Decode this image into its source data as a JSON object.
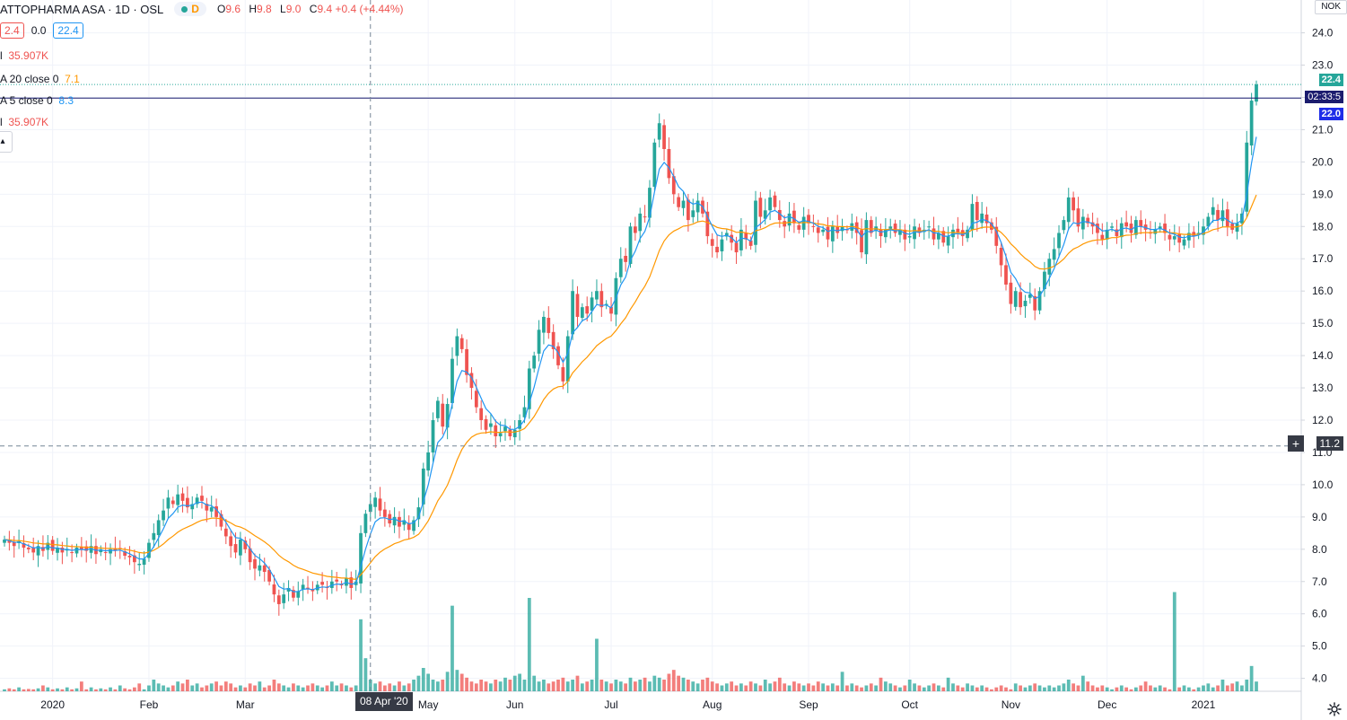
{
  "header": {
    "symbol": "ATTOPHARMA ASA · 1D · OSL",
    "badge": "D",
    "ohlc": [
      {
        "k": "O",
        "v": "9.6"
      },
      {
        "k": "H",
        "v": "9.8"
      },
      {
        "k": "L",
        "v": "9.0"
      },
      {
        "k": "C",
        "v": "9.4 +0.4 (+4.44%)"
      }
    ]
  },
  "legend": {
    "box1": "2.4",
    "mid": "0.0",
    "box2": "22.4",
    "vol_label": "l",
    "vol_value": "35.907K",
    "ema20_label": "A 20 close 0",
    "ema20_value": "7.1",
    "ema5_label": "A 5 close 0",
    "ema5_value": "8.3",
    "vol2_label": "l",
    "vol2_value": "35.907K"
  },
  "currency": "NOK",
  "price_labels": {
    "last": "22.4",
    "countdown": "02:33:5",
    "level": "22.0",
    "crosshair": "11.2",
    "crosshair_date": "08 Apr '20"
  },
  "colors": {
    "up": "#26a69a",
    "down": "#ef5350",
    "ema5": "#2196f3",
    "ema20": "#ff9800",
    "level_line": "#1b1c6e",
    "axis_text": "#131722"
  },
  "chart_data": {
    "type": "candlestick",
    "y_ticks": [
      "24.0",
      "23.0",
      "22.0",
      "21.0",
      "20.0",
      "19.0",
      "18.0",
      "17.0",
      "16.0",
      "15.0",
      "14.0",
      "13.0",
      "12.0",
      "11.0",
      "10.0",
      "9.0",
      "8.0",
      "7.0",
      "6.0",
      "5.0",
      "4.0"
    ],
    "ylim": [
      3.6,
      24.6
    ],
    "x_ticks": [
      {
        "label": "2020",
        "idx": 10
      },
      {
        "label": "Feb",
        "idx": 30
      },
      {
        "label": "Mar",
        "idx": 50
      },
      {
        "label": "May",
        "idx": 88
      },
      {
        "label": "Jun",
        "idx": 106
      },
      {
        "label": "Jul",
        "idx": 126
      },
      {
        "label": "Aug",
        "idx": 147
      },
      {
        "label": "Sep",
        "idx": 167
      },
      {
        "label": "Oct",
        "idx": 188
      },
      {
        "label": "Nov",
        "idx": 209
      },
      {
        "label": "Dec",
        "idx": 229
      },
      {
        "label": "2021",
        "idx": 249
      }
    ],
    "level_line": 21.98,
    "last_price": 22.4,
    "crosshair_price": 11.2,
    "crosshair_idx": 76,
    "volume_scale_max": 9.0,
    "closes": [
      8.3,
      8.2,
      8.1,
      8.25,
      8.05,
      8.0,
      7.9,
      8.1,
      7.95,
      8.2,
      7.95,
      8.05,
      7.9,
      8.0,
      7.9,
      8.05,
      8.0,
      7.95,
      8.1,
      7.85,
      8.0,
      7.9,
      8.0,
      7.95,
      8.0,
      7.8,
      7.75,
      7.6,
      7.55,
      7.7,
      8.2,
      8.5,
      8.9,
      9.2,
      9.6,
      9.4,
      9.7,
      9.5,
      9.3,
      9.4,
      9.6,
      9.5,
      9.2,
      9.3,
      9.0,
      8.7,
      8.4,
      8.1,
      7.9,
      8.3,
      8.0,
      7.6,
      7.4,
      7.5,
      7.3,
      7.0,
      6.6,
      6.3,
      6.6,
      6.8,
      6.5,
      6.7,
      6.9,
      6.8,
      6.7,
      6.9,
      6.9,
      6.8,
      7.0,
      7.0,
      6.9,
      7.1,
      6.8,
      7.0,
      8.5,
      9.1,
      9.4,
      9.6,
      9.2,
      9.0,
      8.8,
      9.0,
      8.7,
      8.9,
      8.6,
      8.9,
      9.3,
      10.5,
      11.0,
      12.0,
      12.6,
      11.8,
      12.5,
      13.9,
      14.6,
      14.2,
      13.4,
      13.0,
      12.4,
      12.0,
      11.7,
      11.9,
      11.5,
      11.6,
      11.8,
      11.5,
      11.7,
      12.0,
      12.4,
      13.6,
      14.0,
      14.8,
      15.2,
      14.7,
      14.2,
      13.7,
      13.2,
      14.6,
      16.0,
      15.2,
      15.5,
      15.3,
      15.8,
      16.0,
      15.5,
      15.6,
      15.3,
      16.4,
      17.0,
      16.9,
      18.0,
      17.8,
      18.4,
      18.3,
      19.2,
      20.6,
      21.2,
      20.4,
      19.5,
      19.0,
      18.6,
      18.8,
      18.2,
      18.5,
      18.8,
      18.4,
      17.7,
      17.4,
      17.2,
      17.6,
      17.8,
      17.5,
      17.2,
      17.9,
      17.6,
      17.4,
      18.8,
      18.3,
      18.5,
      18.9,
      18.6,
      18.2,
      18.0,
      18.4,
      18.1,
      17.9,
      18.3,
      18.1,
      18.0,
      17.8,
      17.9,
      17.6,
      18.0,
      17.8,
      18.0,
      17.9,
      18.1,
      17.8,
      17.2,
      18.2,
      17.8,
      18.0,
      17.7,
      17.9,
      18.0,
      17.8,
      17.9,
      17.6,
      17.7,
      18.0,
      17.8,
      17.9,
      18.0,
      17.6,
      17.8,
      17.5,
      17.7,
      17.9,
      17.8,
      17.7,
      17.9,
      18.7,
      18.2,
      18.4,
      18.1,
      17.9,
      17.4,
      16.8,
      16.2,
      15.6,
      16.0,
      15.5,
      15.7,
      15.9,
      15.4,
      16.0,
      16.6,
      17.0,
      17.3,
      17.8,
      18.2,
      18.9,
      18.5,
      18.0,
      18.3,
      18.1,
      18.0,
      17.8,
      17.6,
      17.9,
      18.0,
      17.7,
      18.1,
      18.0,
      17.8,
      18.2,
      18.0,
      17.9,
      17.8,
      17.9,
      18.0,
      17.8,
      17.6,
      17.7,
      17.5,
      17.6,
      17.8,
      17.7,
      17.8,
      18.0,
      18.3,
      18.6,
      18.2,
      18.5,
      18.0,
      17.9,
      18.1,
      18.4,
      20.6,
      21.9,
      22.4
    ],
    "volumes": [
      0.1,
      0.15,
      0.1,
      0.2,
      0.1,
      0.12,
      0.1,
      0.15,
      0.3,
      0.2,
      0.1,
      0.15,
      0.1,
      0.2,
      0.1,
      0.15,
      0.5,
      0.1,
      0.2,
      0.1,
      0.15,
      0.1,
      0.2,
      0.1,
      0.3,
      0.15,
      0.1,
      0.2,
      0.4,
      0.1,
      0.3,
      0.6,
      0.4,
      0.3,
      0.2,
      0.3,
      0.5,
      0.4,
      0.6,
      0.3,
      0.4,
      0.2,
      0.3,
      0.4,
      0.5,
      0.3,
      0.5,
      0.4,
      0.2,
      0.3,
      0.2,
      0.4,
      0.3,
      0.5,
      0.2,
      0.3,
      0.6,
      0.4,
      0.3,
      0.2,
      0.4,
      0.3,
      0.2,
      0.3,
      0.4,
      0.3,
      0.2,
      0.3,
      0.5,
      0.3,
      0.4,
      0.3,
      0.2,
      0.3,
      3.7,
      1.7,
      0.6,
      0.4,
      0.5,
      0.3,
      0.4,
      0.3,
      0.5,
      0.3,
      0.4,
      0.6,
      0.8,
      1.2,
      0.9,
      0.6,
      0.5,
      0.6,
      1.0,
      4.4,
      1.1,
      0.9,
      0.7,
      0.5,
      0.4,
      0.6,
      0.5,
      0.4,
      0.6,
      0.5,
      0.7,
      0.6,
      0.8,
      0.9,
      0.6,
      4.8,
      0.8,
      0.5,
      0.6,
      0.4,
      0.5,
      0.6,
      0.7,
      0.5,
      0.6,
      0.8,
      0.4,
      0.5,
      0.6,
      2.7,
      0.6,
      0.5,
      0.4,
      0.6,
      0.5,
      0.4,
      0.7,
      0.5,
      0.6,
      0.7,
      0.5,
      0.8,
      0.7,
      0.6,
      0.9,
      1.1,
      0.8,
      0.7,
      0.6,
      0.5,
      0.4,
      0.6,
      0.7,
      0.5,
      0.4,
      0.3,
      0.4,
      0.5,
      0.3,
      0.4,
      0.3,
      0.5,
      0.4,
      0.3,
      0.6,
      0.4,
      0.5,
      0.7,
      0.4,
      0.3,
      0.5,
      0.4,
      0.3,
      0.4,
      0.3,
      0.5,
      0.4,
      0.3,
      0.4,
      0.3,
      1.0,
      0.3,
      0.4,
      0.3,
      0.2,
      0.3,
      0.4,
      0.3,
      0.7,
      0.5,
      0.4,
      0.3,
      0.2,
      0.3,
      0.6,
      0.4,
      0.3,
      0.2,
      0.3,
      0.4,
      0.3,
      0.2,
      0.7,
      0.4,
      0.3,
      0.2,
      0.4,
      0.3,
      0.2,
      0.3,
      0.2,
      0.1,
      0.2,
      0.3,
      0.2,
      0.1,
      0.4,
      0.3,
      0.2,
      0.3,
      0.4,
      0.3,
      0.2,
      0.3,
      0.2,
      0.3,
      0.4,
      0.6,
      0.4,
      0.3,
      0.8,
      0.5,
      0.3,
      0.2,
      0.3,
      0.2,
      0.1,
      0.2,
      0.3,
      0.2,
      0.1,
      0.2,
      0.3,
      0.5,
      0.3,
      0.2,
      0.3,
      0.2,
      0.1,
      5.1,
      0.2,
      0.3,
      0.2,
      0.1,
      0.2,
      0.3,
      0.4,
      0.2,
      0.3,
      0.6,
      0.3,
      0.4,
      0.5,
      0.3,
      0.6,
      1.3,
      0.5
    ]
  }
}
